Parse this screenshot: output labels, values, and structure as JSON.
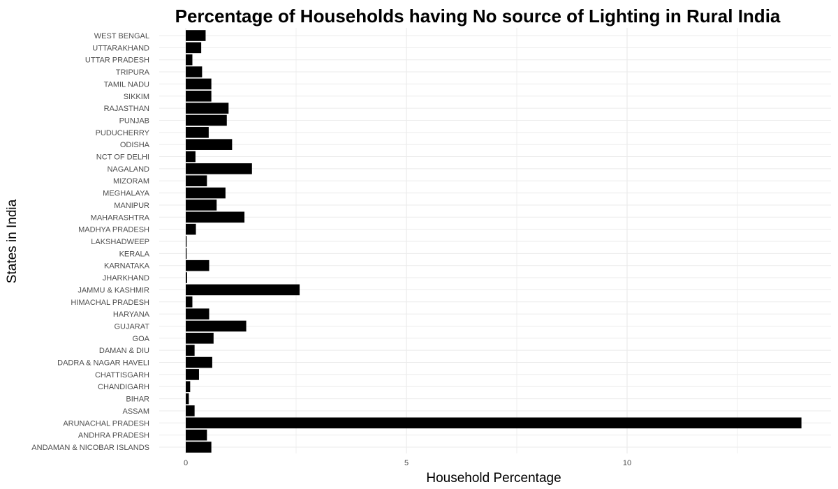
{
  "chart_data": {
    "type": "bar",
    "orientation": "horizontal",
    "title": "Percentage of Households having No source of Lighting in Rural India",
    "xlabel": "Household Percentage",
    "ylabel": "States in India",
    "xlim": [
      0,
      14
    ],
    "xticks": [
      0,
      5,
      10
    ],
    "grid": true,
    "bar_color": "#000000",
    "grid_color": "#ebebeb",
    "categories": [
      "ANDAMAN & NICOBAR ISLANDS",
      "ANDHRA PRADESH",
      "ARUNACHAL PRADESH",
      "ASSAM",
      "BIHAR",
      "CHANDIGARH",
      "CHATTISGARH",
      "DADRA & NAGAR HAVELI",
      "DAMAN & DIU",
      "GOA",
      "GUJARAT",
      "HARYANA",
      "HIMACHAL PRADESH",
      "JAMMU & KASHMIR",
      "JHARKHAND",
      "KARNATAKA",
      "KERALA",
      "LAKSHADWEEP",
      "MADHYA PRADESH",
      "MAHARASHTRA",
      "MANIPUR",
      "MEGHALAYA",
      "MIZORAM",
      "NAGALAND",
      "NCT OF DELHI",
      "ODISHA",
      "PUDUCHERRY",
      "PUNJAB",
      "RAJASTHAN",
      "SIKKIM",
      "TAMIL NADU",
      "TRIPURA",
      "UTTAR PRADESH",
      "UTTARAKHAND",
      "WEST BENGAL"
    ],
    "values": [
      0.58,
      0.48,
      13.95,
      0.2,
      0.07,
      0.1,
      0.3,
      0.6,
      0.2,
      0.63,
      1.37,
      0.53,
      0.15,
      2.58,
      0.03,
      0.53,
      0.02,
      0.02,
      0.23,
      1.33,
      0.7,
      0.9,
      0.48,
      1.5,
      0.22,
      1.05,
      0.52,
      0.93,
      0.97,
      0.58,
      0.58,
      0.37,
      0.15,
      0.35,
      0.45
    ]
  }
}
